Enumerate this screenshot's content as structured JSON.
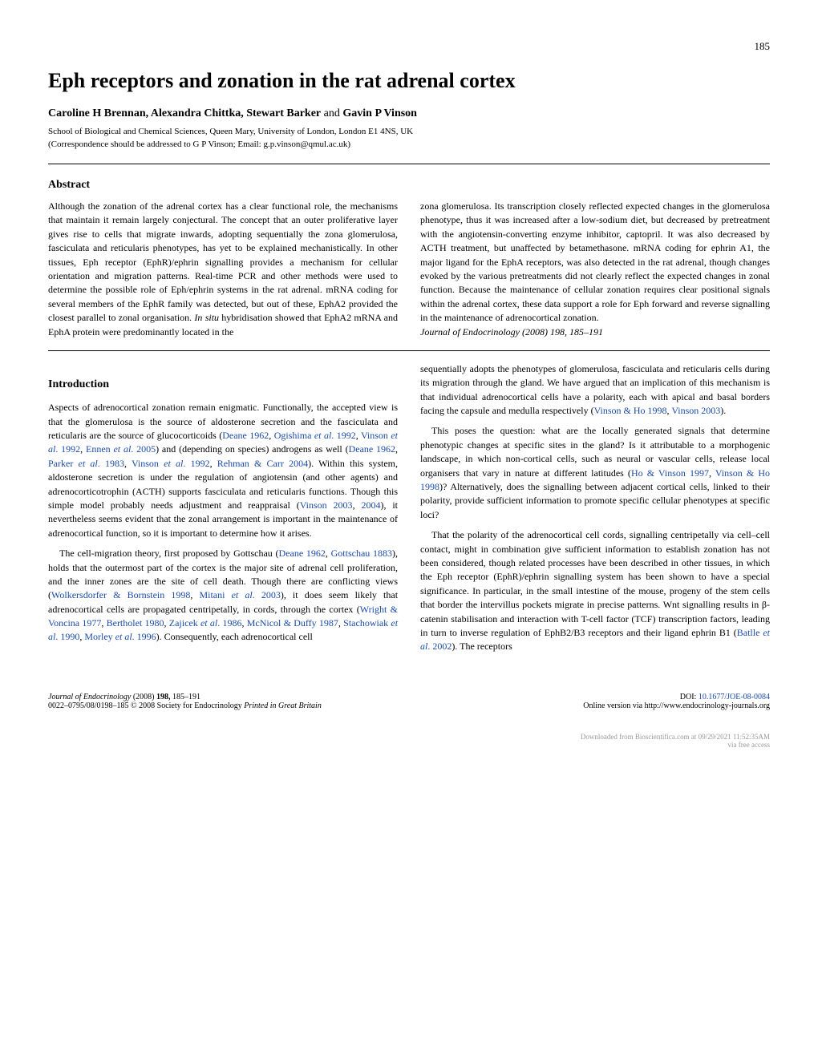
{
  "page_number": "185",
  "title": "Eph receptors and zonation in the rat adrenal cortex",
  "authors_html": "<strong>Caroline H Brennan, Alexandra Chittka, Stewart Barker</strong> and <strong>Gavin P Vinson</strong>",
  "affiliation": "School of Biological and Chemical Sciences, Queen Mary, University of London, London E1 4NS, UK",
  "correspondence": "(Correspondence should be addressed to G P Vinson; Email: g.p.vinson@qmul.ac.uk)",
  "abstract_heading": "Abstract",
  "abstract_left": "Although the zonation of the adrenal cortex has a clear functional role, the mechanisms that maintain it remain largely conjectural. The concept that an outer proliferative layer gives rise to cells that migrate inwards, adopting sequentially the zona glomerulosa, fasciculata and reticularis phenotypes, has yet to be explained mechanistically. In other tissues, Eph receptor (EphR)/ephrin signalling provides a mechanism for cellular orientation and migration patterns. Real-time PCR and other methods were used to determine the possible role of Eph/ephrin systems in the rat adrenal. mRNA coding for several members of the EphR family was detected, but out of these, EphA2 provided the closest parallel to zonal organisation. <em>In situ</em> hybridisation showed that EphA2 mRNA and EphA protein were predominantly located in the",
  "abstract_right": "zona glomerulosa. Its transcription closely reflected expected changes in the glomerulosa phenotype, thus it was increased after a low-sodium diet, but decreased by pretreatment with the angiotensin-converting enzyme inhibitor, captopril. It was also decreased by ACTH treatment, but unaffected by betamethasone. mRNA coding for ephrin A1, the major ligand for the EphA receptors, was also detected in the rat adrenal, though changes evoked by the various pretreatments did not clearly reflect the expected changes in zonal function. Because the maintenance of cellular zonation requires clear positional signals within the adrenal cortex, these data support a role for Eph forward and reverse signalling in the maintenance of adrenocortical zonation.",
  "journal_citation": "Journal of Endocrinology (2008) 198, 185–191",
  "intro_heading": "Introduction",
  "intro_left_p1": "Aspects of adrenocortical zonation remain enigmatic. Functionally, the accepted view is that the glomerulosa is the source of aldosterone secretion and the fasciculata and reticularis are the source of glucocorticoids (<span class='link'>Deane 1962</span>, <span class='link'>Ogishima <em>et al</em>. 1992</span>, <span class='link'>Vinson <em>et al</em>. 1992</span>, <span class='link'>Ennen <em>et al</em>. 2005</span>) and (depending on species) androgens as well (<span class='link'>Deane 1962</span>, <span class='link'>Parker <em>et al</em>. 1983</span>, <span class='link'>Vinson <em>et al</em>. 1992</span>, <span class='link'>Rehman & Carr 2004</span>). Within this system, aldosterone secretion is under the regulation of angiotensin (and other agents) and adrenocorticotrophin (ACTH) supports fasciculata and reticularis functions. Though this simple model probably needs adjustment and reappraisal (<span class='link'>Vinson 2003</span>, <span class='link'>2004</span>), it nevertheless seems evident that the zonal arrangement is important in the maintenance of adrenocortical function, so it is important to determine how it arises.",
  "intro_left_p2": "The cell-migration theory, first proposed by Gottschau (<span class='link'>Deane 1962</span>, <span class='link'>Gottschau 1883</span>), holds that the outermost part of the cortex is the major site of adrenal cell proliferation, and the inner zones are the site of cell death. Though there are conflicting views (<span class='link'>Wolkersdorfer & Bornstein 1998</span>, <span class='link'>Mitani <em>et al</em>. 2003</span>), it does seem likely that adrenocortical cells are propagated centripetally, in cords, through the cortex (<span class='link'>Wright & Voncina 1977</span>, <span class='link'>Bertholet 1980</span>, <span class='link'>Zajicek <em>et al</em>. 1986</span>, <span class='link'>McNicol & Duffy 1987</span>, <span class='link'>Stachowiak <em>et al</em>. 1990</span>, <span class='link'>Morley <em>et al</em>. 1996</span>). Consequently, each adrenocortical cell",
  "intro_right_p1": "sequentially adopts the phenotypes of glomerulosa, fasciculata and reticularis cells during its migration through the gland. We have argued that an implication of this mechanism is that individual adrenocortical cells have a polarity, each with apical and basal borders facing the capsule and medulla respectively (<span class='link'>Vinson & Ho 1998</span>, <span class='link'>Vinson 2003</span>).",
  "intro_right_p2": "This poses the question: what are the locally generated signals that determine phenotypic changes at specific sites in the gland? Is it attributable to a morphogenic landscape, in which non-cortical cells, such as neural or vascular cells, release local organisers that vary in nature at different latitudes (<span class='link'>Ho & Vinson 1997</span>, <span class='link'>Vinson & Ho 1998</span>)? Alternatively, does the signalling between adjacent cortical cells, linked to their polarity, provide sufficient information to promote specific cellular phenotypes at specific loci?",
  "intro_right_p3": "That the polarity of the adrenocortical cell cords, signalling centripetally via cell–cell contact, might in combination give sufficient information to establish zonation has not been considered, though related processes have been described in other tissues, in which the Eph receptor (EphR)/ephrin signalling system has been shown to have a special significance. In particular, in the small intestine of the mouse, progeny of the stem cells that border the intervillus pockets migrate in precise patterns. Wnt signalling results in β-catenin stabilisation and interaction with T-cell factor (TCF) transcription factors, leading in turn to inverse regulation of EphB2/B3 receptors and their ligand ephrin B1 (<span class='link'>Batlle <em>et al</em>. 2002</span>). The receptors",
  "footer_left_line1": "<em>Journal of Endocrinology</em> (2008) <strong>198,</strong> 185–191",
  "footer_left_line2": "0022–0795/08/0198–185 © 2008 Society for Endocrinology <em>Printed in Great Britain</em>",
  "footer_right_line1": "DOI: <span class='link'>10.1677/JOE-08-0084</span>",
  "footer_right_line2": "Online version via http://www.endocrinology-journals.org",
  "watermark_line1": "Downloaded from Bioscientifica.com at 09/29/2021 11:52:35AM",
  "watermark_line2": "via free access"
}
